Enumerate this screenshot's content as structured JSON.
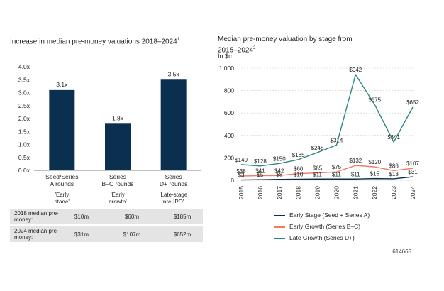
{
  "chart_data": [
    {
      "type": "bar",
      "title": "Increase in median pre-money valuations 2018–2024",
      "title_note": "1",
      "categories": [
        "Seed/Series A rounds",
        "Series B–C rounds",
        "Series D+ rounds"
      ],
      "category_lines": [
        [
          "Seed/Series",
          "A rounds"
        ],
        [
          "Series",
          "B–C rounds"
        ],
        [
          "Series",
          "D+ rounds"
        ]
      ],
      "category_notes": [
        [
          "'Early",
          "stage'"
        ],
        [
          "'Early",
          "growth'"
        ],
        [
          "'Late-stage",
          "pre-IPO'"
        ]
      ],
      "values": [
        3.1,
        1.8,
        3.5
      ],
      "data_labels": [
        "3.1x",
        "1.8x",
        "3.5x"
      ],
      "ylim": [
        0,
        4.0
      ],
      "yticks": [
        "0.0x",
        "0.5x",
        "1.0x",
        "1.5x",
        "2.0x",
        "2.5x",
        "3.0x",
        "3.5x",
        "4.0x"
      ],
      "bar_color": "#0b2f4e",
      "table": {
        "rows": [
          {
            "label": "2018 median pre-money:",
            "values": [
              "$10m",
              "$60m",
              "$185m"
            ]
          },
          {
            "label": "2024 median pre-money:",
            "values": [
              "$31m",
              "$107m",
              "$652m"
            ]
          }
        ]
      }
    },
    {
      "type": "line",
      "title": "Median pre-money valuation by stage from 2015–2024",
      "title_note": "2",
      "ylabel": "In $m",
      "x": [
        "2015",
        "2016",
        "2017",
        "2018",
        "2019",
        "2020",
        "2021",
        "2022",
        "2023",
        "2024"
      ],
      "ylim": [
        0,
        1000
      ],
      "yticks": [
        "0",
        "200",
        "400",
        "600",
        "800",
        "1,000"
      ],
      "series": [
        {
          "name": "Early Stage (Seed + Series A)",
          "color": "#0b2f4e",
          "values": [
            3,
            5,
            8,
            10,
            11,
            11,
            11,
            15,
            13,
            31
          ],
          "labels": [
            "$3",
            "$5",
            "$8",
            "$10",
            "$11",
            "$11",
            "$11",
            "$15",
            "$13",
            "$31"
          ]
        },
        {
          "name": "Early Growth (Series B–C)",
          "color": "#f07a62",
          "values": [
            38,
            41,
            42,
            60,
            65,
            75,
            132,
            120,
            86,
            107
          ],
          "labels": [
            "$38",
            "$41",
            "$42",
            "$60",
            "$65",
            "$75",
            "$132",
            "$120",
            "$86",
            "$107"
          ]
        },
        {
          "name": "Late Growth (Series D+)",
          "color": "#2e8686",
          "values": [
            140,
            128,
            150,
            185,
            248,
            314,
            942,
            675,
            341,
            652
          ],
          "labels": [
            "$140",
            "$128",
            "$150",
            "$185",
            "$248",
            "$314",
            "$942",
            "$675",
            "$341",
            "$652"
          ]
        }
      ]
    }
  ],
  "footnote": "614665"
}
